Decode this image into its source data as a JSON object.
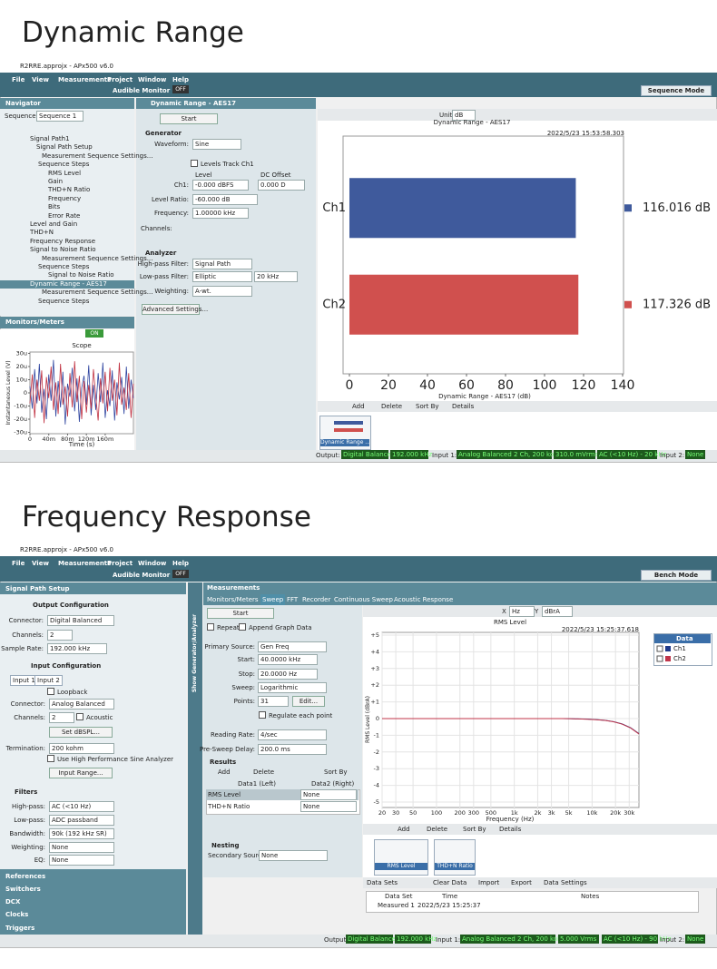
{
  "sections": [
    {
      "heading": "Dynamic Range",
      "title": "R2RRE.approjx - APx500 v6.0",
      "menu": [
        "File",
        "View",
        "Measurements",
        "Project",
        "Window",
        "Help"
      ],
      "toolbar": [
        "Audible Monitor",
        "OFF",
        "Sequence Mode"
      ],
      "nav": [
        "Navigator",
        "Sequence:",
        "Sequence 1"
      ],
      "tree": [
        "Signal Path1",
        "Signal Path Setup",
        "Measurement Sequence Settings...",
        "Sequence Steps",
        "RMS Level",
        "Gain",
        "THD+N Ratio",
        "Frequency",
        "Bits",
        "Error Rate",
        "Level and Gain",
        "THD+N",
        "Frequency Response",
        "Signal to Noise Ratio",
        "Measurement Sequence Settings...",
        "Sequence Steps",
        "Signal to Noise Ratio",
        "Dynamic Range - AES17",
        "Measurement Sequence Settings...",
        "Sequence Steps"
      ],
      "monitors": [
        "Monitors/Meters",
        "ON"
      ],
      "panel": [
        "Dynamic Range - AES17",
        "Start",
        "Generator",
        "Waveform:",
        "Sine",
        "Levels Track Ch1",
        "Level",
        "DC Offset",
        "Ch1:",
        "-0.000 dBFS",
        "0.000 D",
        "Level Ratio:",
        "-60.000 dB",
        "Frequency:",
        "1.00000 kHz",
        "Channels:",
        "Analyzer",
        "High-pass Filter:",
        "Signal Path",
        "Low-pass Filter:",
        "Elliptic",
        "20 kHz",
        "Weighting:",
        "A-wt.",
        "Advanced Settings..."
      ],
      "graph_toolbar": [
        "Unit",
        "dB"
      ],
      "graph_bar": [
        "Add",
        "Delete",
        "Sort By",
        "Details"
      ],
      "thumbnails": [
        "Dynamic Range ..."
      ],
      "status": [
        "Output:",
        "Digital Balanced",
        "192.000 kHz",
        "Input 1:",
        "Analog Balanced 2 Ch, 200 kohm",
        "310.0 mVrms",
        "AC (<10 Hz) - 20 kHz",
        "Input 2:",
        "None"
      ]
    },
    {
      "heading": "Frequency Response",
      "title": "R2RRE.approjx - APx500 v6.0",
      "menu": [
        "File",
        "View",
        "Measurements",
        "Project",
        "Window",
        "Help"
      ],
      "toolbar": [
        "Audible Monitor",
        "OFF",
        "Bench Mode"
      ],
      "left": [
        "Signal Path Setup",
        "Output Configuration",
        "Connector:",
        "Digital Balanced",
        "Channels:",
        "2",
        "Sample Rate:",
        "192.000 kHz",
        "Input Configuration",
        "Input 1",
        "Input 2",
        "Loopback",
        "Connector:",
        "Analog Balanced",
        "Channels:",
        "2",
        "Acoustic",
        "Set dBSPL...",
        "Termination:",
        "200 kohm",
        "Use High Performance Sine Analyzer",
        "Input Range...",
        "Filters",
        "High-pass:",
        "AC (<10 Hz)",
        "Low-pass:",
        "ADC passband",
        "Bandwidth:",
        "90k (192 kHz SR)",
        "Weighting:",
        "None",
        "EQ:",
        "None"
      ],
      "bottom_list": [
        "References",
        "Switchers",
        "DCX",
        "Clocks",
        "Triggers"
      ],
      "vertical": "Show Generator/Analyzer",
      "meas": [
        "Measurements",
        "Monitors/Meters",
        "Sweep",
        "FFT",
        "Recorder",
        "Continuous Sweep",
        "Acoustic Response",
        "Start",
        "Repeat",
        "Append Graph Data",
        "Primary Source:",
        "Gen Freq",
        "Start:",
        "40.0000 kHz",
        "Stop:",
        "20.0000 Hz",
        "Sweep:",
        "Logarithmic",
        "Points:",
        "31",
        "Edit...",
        "Regulate each point",
        "Reading Rate:",
        "4/sec",
        "Pre-Sweep Delay:",
        "200.0 ms",
        "Results",
        "Add",
        "Delete",
        "Sort By",
        "Data1 (Left)",
        "Data2 (Right)",
        "RMS Level",
        "None",
        "THD+N Ratio",
        "None",
        "Nesting",
        "Secondary Source:",
        "None"
      ],
      "graph_toolbar": [
        "X",
        "Hz",
        "Y",
        "dBrA"
      ],
      "graph_bar": [
        "Add",
        "Delete",
        "Sort By",
        "Details"
      ],
      "thumbnails": [
        "RMS Level",
        "THD+N Ratio"
      ],
      "datasets": [
        "Data Sets",
        "Clear Data",
        "Import",
        "Export",
        "Data Settings"
      ],
      "table_header": [
        "Data Set",
        "Time",
        "Notes"
      ],
      "table_row": [
        "Measured 1",
        "2022/5/23 15:25:37"
      ],
      "status": [
        "Output:",
        "Digital Balanced",
        "192.000 kHz",
        "Input 1:",
        "Analog Balanced 2 Ch, 200 kohm",
        "5.000 Vrms",
        "AC (<10 Hz) - 90 kHz",
        "Input 2:",
        "None"
      ]
    }
  ],
  "chart_data": [
    {
      "type": "bar",
      "orientation": "horizontal",
      "title": "Dynamic Range - AES17",
      "timestamp": "2022/5/23 15:53:58.303",
      "categories": [
        "Ch1",
        "Ch2"
      ],
      "values": [
        116.016,
        117.326
      ],
      "value_labels": [
        "116.016 dB",
        "117.326 dB"
      ],
      "colors": [
        "#3f5a9c",
        "#d0504e"
      ],
      "x_label": "Dynamic Range - AES17 (dB)",
      "xlim": [
        0,
        140
      ],
      "xticks": [
        0,
        20,
        40,
        60,
        80,
        100,
        120,
        140
      ]
    },
    {
      "type": "line",
      "title": "Scope",
      "x_label": "Time (s)",
      "y_label": "Instantaneous Level (V)",
      "x": [
        0,
        0.005,
        0.01,
        0.015,
        0.02,
        0.025,
        0.03,
        0.035,
        0.04,
        0.045,
        0.05,
        0.055,
        0.06,
        0.065,
        0.07,
        0.075,
        0.08,
        0.085,
        0.09,
        0.095,
        0.1,
        0.105,
        0.11,
        0.115,
        0.12,
        0.125,
        0.13,
        0.135,
        0.14,
        0.145,
        0.15,
        0.155,
        0.16,
        0.165,
        0.17,
        0.175,
        0.18,
        0.185,
        0.19,
        0.195,
        0.2,
        0.205,
        0.21,
        0.215,
        0.22
      ],
      "series": [
        {
          "color": "#2f45a0",
          "values": [
            5e-06,
            -1.2e-05,
            1.8e-05,
            -8e-06,
            2.2e-05,
            -1.5e-05,
            3e-06,
            -2e-05,
            1.4e-05,
            -6e-06,
            2.5e-05,
            -1.8e-05,
            9e-06,
            -1.1e-05,
            1.6e-05,
            -2.4e-05,
            7e-06,
            -3e-06,
            1.9e-05,
            -1.4e-05,
            1.1e-05,
            -2.2e-05,
            4e-06,
            1.3e-05,
            -9e-06,
            2.1e-05,
            -1.7e-05,
            6e-06,
            -1.3e-05,
            1.5e-05,
            -7e-06,
            2.3e-05,
            -1.9e-05,
            2e-06,
            -1e-05,
            1.7e-05,
            -2.1e-05,
            8e-06,
            -5e-06,
            1.2e-05,
            -1.6e-05,
            2e-05,
            -1.2e-05,
            1e-05,
            -4e-06
          ]
        },
        {
          "color": "#c03040",
          "values": [
            -8e-06,
            1.4e-05,
            -1.9e-05,
            1e-05,
            -6e-06,
            1.7e-05,
            -2.3e-05,
            1.2e-05,
            -4e-06,
            2e-05,
            -1.3e-05,
            8e-06,
            -1.6e-05,
            2.2e-05,
            -9e-06,
            5e-06,
            -1.8e-05,
            1.5e-05,
            -1.1e-05,
            2.4e-05,
            -7e-06,
            1.3e-05,
            -2e-05,
            9e-06,
            -1.5e-05,
            6e-06,
            -1.2e-05,
            1.8e-05,
            -3e-06,
            -2.1e-05,
            1.1e-05,
            -8e-06,
            1.6e-05,
            -1.4e-05,
            1.9e-05,
            -6e-06,
            1e-05,
            -1.7e-05,
            2.3e-05,
            -9e-06,
            4e-06,
            -1.3e-05,
            1.5e-05,
            -1.9e-05,
            7e-06
          ]
        }
      ],
      "xlim": [
        0,
        0.22
      ],
      "ylim": [
        -3.1e-05,
        3.1e-05
      ],
      "xticks": [
        0,
        {
          "value": 0.04,
          "label": "40m"
        },
        {
          "value": 0.08,
          "label": "80m"
        },
        {
          "value": 0.12,
          "label": "120m"
        },
        {
          "value": 0.16,
          "label": "160m"
        }
      ],
      "yticks": [
        {
          "value": 3e-05,
          "label": "30u"
        },
        {
          "value": 2e-05,
          "label": "20u"
        },
        {
          "value": 1e-05,
          "label": "10u"
        },
        0,
        {
          "value": -1e-05,
          "label": "-10u"
        },
        {
          "value": -2e-05,
          "label": "-20u"
        },
        {
          "value": -3e-05,
          "label": "-30u"
        }
      ]
    },
    {
      "type": "line",
      "title": "RMS Level",
      "timestamp": "2022/5/23 15:25:37.618",
      "x_label": "Frequency (Hz)",
      "y_label": "RMS Level (dBrA)",
      "legend_title": "Data",
      "legend": "right",
      "log_x": true,
      "grid": true,
      "x": [
        20,
        25.8,
        33.2,
        42.8,
        55.2,
        71.1,
        91.6,
        118,
        152,
        196,
        252,
        325,
        419,
        540,
        696,
        897,
        1156,
        1490,
        1920,
        2474,
        3188,
        4108,
        5293,
        6821,
        8790,
        11327,
        14596,
        18808,
        24236,
        31231,
        40000
      ],
      "series": [
        {
          "name": "Ch1",
          "color": "#1f3a8a",
          "values": [
            0,
            0,
            0,
            0,
            0,
            0,
            0,
            0,
            0,
            0,
            0,
            0,
            0,
            0,
            0,
            0,
            0,
            0,
            0,
            0,
            0,
            0,
            -0.01,
            -0.02,
            -0.03,
            -0.06,
            -0.1,
            -0.18,
            -0.32,
            -0.55,
            -0.9
          ]
        },
        {
          "name": "Ch2",
          "color": "#c0354a",
          "values": [
            0,
            0,
            0,
            0,
            0,
            0,
            0,
            0,
            0,
            0,
            0,
            0,
            0,
            0,
            0,
            0,
            0,
            0,
            0,
            0,
            0,
            0,
            -0.01,
            -0.02,
            -0.04,
            -0.07,
            -0.11,
            -0.19,
            -0.33,
            -0.56,
            -0.92
          ]
        }
      ],
      "xlim": [
        20,
        40000
      ],
      "ylim": [
        -5,
        5
      ],
      "xticks": [
        20,
        30,
        50,
        100,
        200,
        300,
        500,
        {
          "value": 1000,
          "label": "1k"
        },
        {
          "value": 2000,
          "label": "2k"
        },
        {
          "value": 3000,
          "label": "3k"
        },
        {
          "value": 5000,
          "label": "5k"
        },
        {
          "value": 10000,
          "label": "10k"
        },
        {
          "value": 20000,
          "label": "20k"
        },
        {
          "value": 30000,
          "label": "30k"
        }
      ],
      "yticks": [
        {
          "value": 5,
          "label": "+5"
        },
        {
          "value": 4,
          "label": "+4"
        },
        {
          "value": 3,
          "label": "+3"
        },
        {
          "value": 2,
          "label": "+2"
        },
        {
          "value": 1,
          "label": "+1"
        },
        0,
        -1,
        -2,
        -3,
        -4,
        -5
      ]
    }
  ]
}
